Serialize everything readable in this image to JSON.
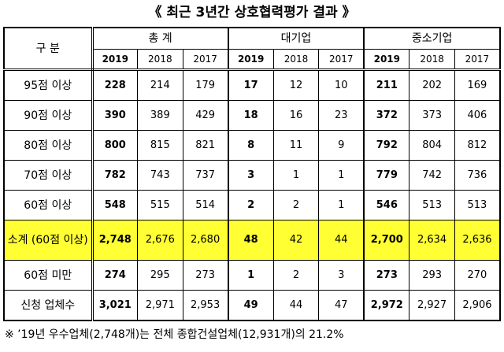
{
  "title": "《 최근 3년간 상호협력평가 결과 》",
  "table": {
    "corner": "구 분",
    "groups": [
      "총 계",
      "대기업",
      "중소기업"
    ],
    "years": [
      "2019",
      "2018",
      "2017"
    ],
    "rows": [
      [
        "95점 이상",
        "228",
        "214",
        "179",
        "17",
        "12",
        "10",
        "211",
        "202",
        "169"
      ],
      [
        "90점 이상",
        "390",
        "389",
        "429",
        "18",
        "16",
        "23",
        "372",
        "373",
        "406"
      ],
      [
        "80점 이상",
        "800",
        "815",
        "821",
        "8",
        "11",
        "9",
        "792",
        "804",
        "812"
      ],
      [
        "70점 이상",
        "782",
        "743",
        "737",
        "3",
        "1",
        "1",
        "779",
        "742",
        "736"
      ],
      [
        "60점 이상",
        "548",
        "515",
        "514",
        "2",
        "2",
        "1",
        "546",
        "513",
        "513"
      ],
      [
        "소계 (60점 이상)",
        "2,748",
        "2,676",
        "2,680",
        "48",
        "42",
        "44",
        "2,700",
        "2,634",
        "2,636"
      ],
      [
        "60점 미만",
        "274",
        "295",
        "273",
        "1",
        "2",
        "3",
        "273",
        "293",
        "270"
      ],
      [
        "신청 업체수",
        "3,021",
        "2,971",
        "2,953",
        "49",
        "44",
        "47",
        "2,972",
        "2,927",
        "2,906"
      ]
    ],
    "highlight_row": 5
  },
  "footnote": "※ ’19년 우수업체(2,748개)는 전체 종합건설업체(12,931개)의 21.2%"
}
